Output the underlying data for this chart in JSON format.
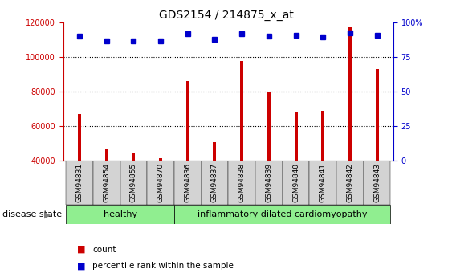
{
  "title": "GDS2154 / 214875_x_at",
  "categories": [
    "GSM94831",
    "GSM94854",
    "GSM94855",
    "GSM94870",
    "GSM94836",
    "GSM94837",
    "GSM94838",
    "GSM94839",
    "GSM94840",
    "GSM94841",
    "GSM94842",
    "GSM94843"
  ],
  "counts": [
    67000,
    47000,
    44000,
    41500,
    86000,
    50500,
    97500,
    80000,
    68000,
    69000,
    117000,
    93000
  ],
  "percentile_y": [
    112000,
    109000,
    109000,
    109000,
    113500,
    110000,
    113500,
    112000,
    112500,
    111500,
    114000,
    112500
  ],
  "ylim_left": [
    40000,
    120000
  ],
  "right_ticks": [
    0,
    25,
    50,
    75,
    100
  ],
  "right_tick_labels": [
    "0",
    "25",
    "50",
    "75",
    "100%"
  ],
  "left_ticks": [
    40000,
    60000,
    80000,
    100000,
    120000
  ],
  "left_tick_labels": [
    "40000",
    "60000",
    "80000",
    "100000",
    "120000"
  ],
  "bar_color": "#cc0000",
  "dot_color": "#0000cc",
  "healthy_label": "healthy",
  "disease_label": "inflammatory dilated cardiomyopathy",
  "disease_state_label": "disease state",
  "legend_count_label": "count",
  "legend_percentile_label": "percentile rank within the sample",
  "bg_color": "#ffffff",
  "bar_width": 0.12,
  "tick_color_left": "#cc0000",
  "tick_color_right": "#0000cc",
  "healthy_count": 4,
  "total_count": 12,
  "green_color": "#90ee90",
  "xticklabel_bg": "#d3d3d3"
}
